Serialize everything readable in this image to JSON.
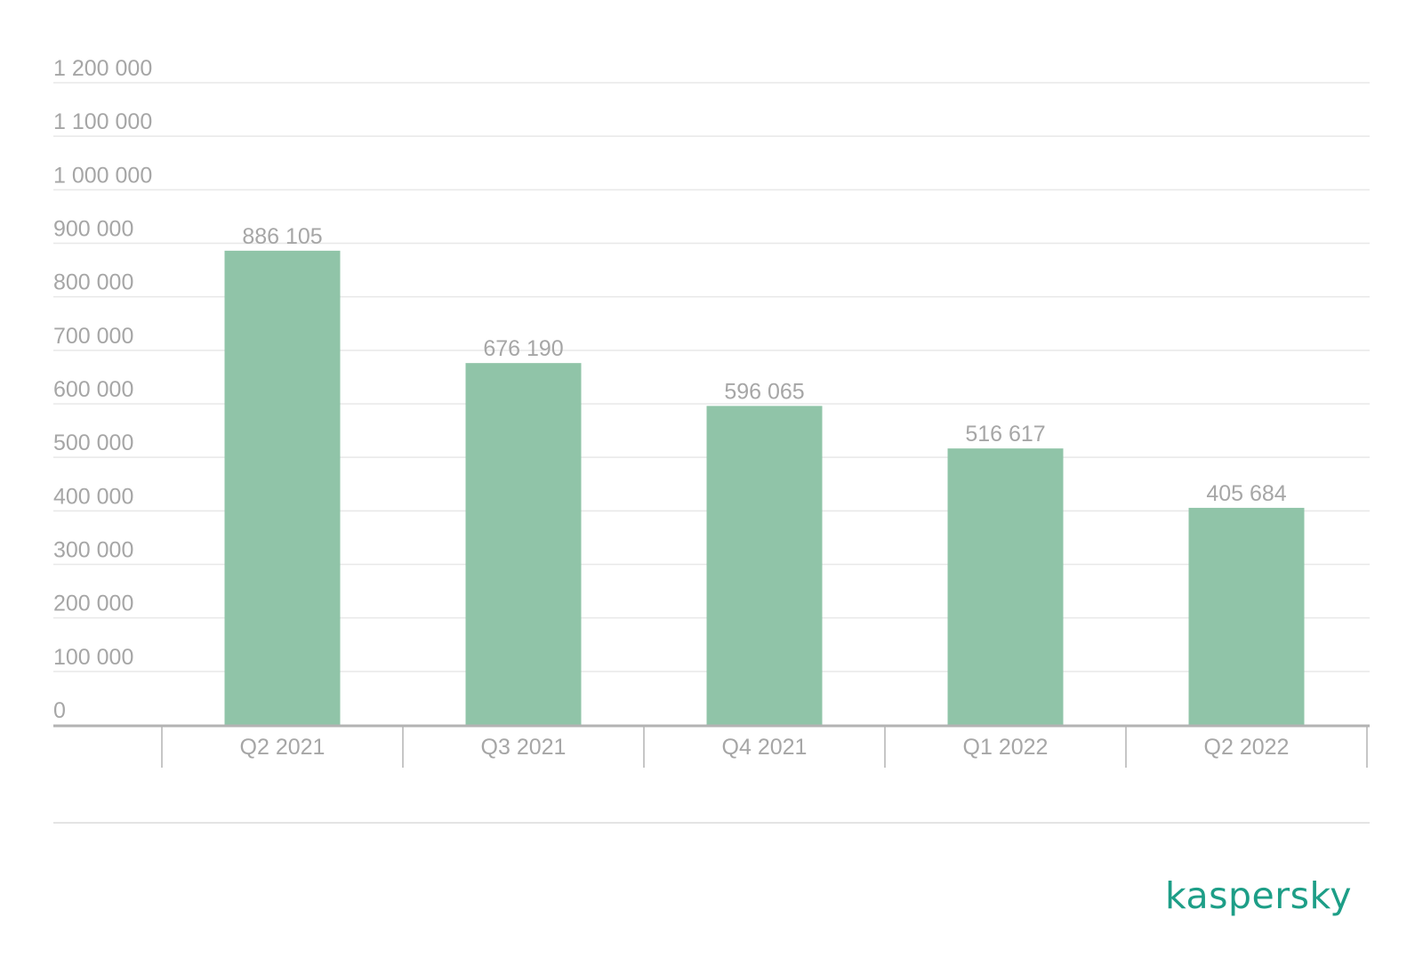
{
  "chart_data": {
    "type": "bar",
    "categories": [
      "Q2 2021",
      "Q3 2021",
      "Q4 2021",
      "Q1 2022",
      "Q2 2022"
    ],
    "values": [
      886105,
      676190,
      596065,
      516617,
      405684
    ],
    "value_labels": [
      "886 105",
      "676 190",
      "596 065",
      "516 617",
      "405 684"
    ],
    "ylim": [
      0,
      1200000
    ],
    "y_ticks": [
      0,
      100000,
      200000,
      300000,
      400000,
      500000,
      600000,
      700000,
      800000,
      900000,
      1000000,
      1100000,
      1200000
    ],
    "y_tick_labels": [
      "0",
      "100 000",
      "200 000",
      "300 000",
      "400 000",
      "500 000",
      "600 000",
      "700 000",
      "800 000",
      "900 000",
      "1 000 000",
      "1 100 000",
      "1 200 000"
    ],
    "grid": true,
    "legend": "none",
    "title": "",
    "xlabel": "",
    "ylabel": "",
    "colors": {
      "bar": "#90c4a8",
      "grid": "#e8e8e8",
      "axis": "#b3b3b3",
      "text": "#a6a6a6"
    }
  },
  "brand": {
    "logo_text": "kaspersky",
    "color": "#1d9e87"
  }
}
